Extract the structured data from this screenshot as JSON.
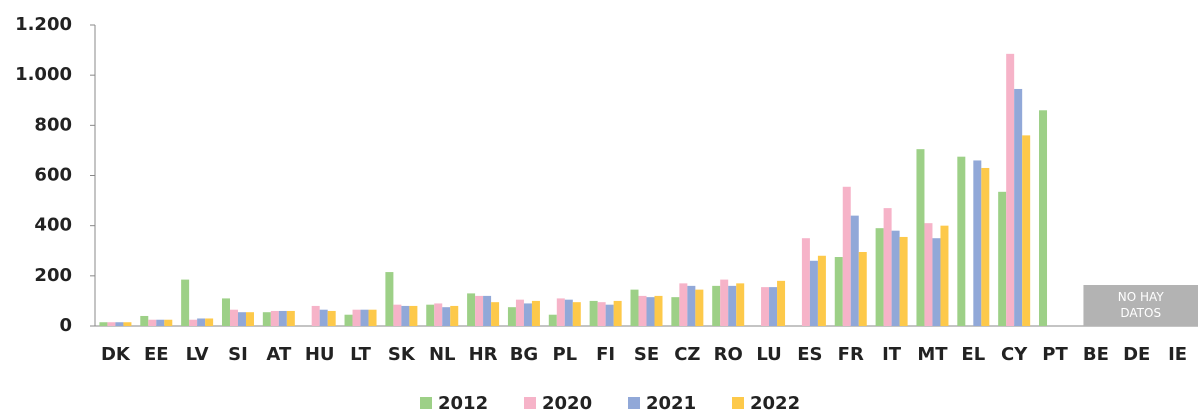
{
  "chart_data": {
    "type": "bar",
    "categories": [
      "DK",
      "EE",
      "LV",
      "SI",
      "AT",
      "HU",
      "LT",
      "SK",
      "NL",
      "HR",
      "BG",
      "PL",
      "FI",
      "SE",
      "CZ",
      "RO",
      "LU",
      "ES",
      "FR",
      "IT",
      "MT",
      "EL",
      "CY",
      "PT",
      "BE",
      "DE",
      "IE"
    ],
    "series": [
      {
        "name": "2012",
        "color": "#9dd087",
        "values": [
          15,
          40,
          185,
          110,
          55,
          null,
          45,
          215,
          85,
          130,
          75,
          45,
          100,
          145,
          115,
          160,
          null,
          null,
          275,
          390,
          705,
          675,
          535,
          860,
          null,
          null,
          null
        ]
      },
      {
        "name": "2020",
        "color": "#f6b3c8",
        "values": [
          15,
          25,
          25,
          65,
          60,
          80,
          65,
          85,
          90,
          120,
          105,
          110,
          95,
          120,
          170,
          185,
          155,
          350,
          555,
          470,
          410,
          null,
          1085,
          null,
          null,
          null,
          null
        ]
      },
      {
        "name": "2021",
        "color": "#91a8d8",
        "values": [
          15,
          25,
          30,
          55,
          60,
          65,
          65,
          80,
          75,
          120,
          90,
          105,
          85,
          115,
          160,
          160,
          155,
          260,
          440,
          380,
          350,
          660,
          945,
          null,
          null,
          null,
          null
        ]
      },
      {
        "name": "2022",
        "color": "#fdc94a",
        "values": [
          15,
          25,
          30,
          55,
          60,
          60,
          65,
          80,
          80,
          95,
          100,
          95,
          100,
          120,
          145,
          170,
          180,
          280,
          295,
          355,
          400,
          630,
          760,
          null,
          null,
          null,
          null
        ]
      }
    ],
    "ylim": [
      0,
      1200
    ],
    "yticks": [
      0,
      200,
      400,
      600,
      800,
      {
        "value": 1000,
        "label": "1.000"
      },
      {
        "value": 1200,
        "label": "1.200"
      }
    ],
    "annotation": "NO HAY DATOS",
    "legend": "bottom"
  }
}
